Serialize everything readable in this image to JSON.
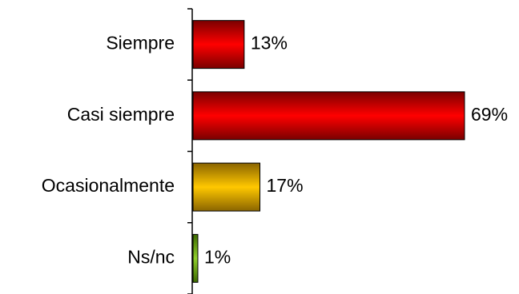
{
  "chart_data": {
    "type": "bar",
    "orientation": "horizontal",
    "categories": [
      "Siempre",
      "Casi siempre",
      "Ocasionalmente",
      "Ns/nc"
    ],
    "values": [
      13,
      69,
      17,
      1
    ],
    "data_labels": [
      "13%",
      "69%",
      "17%",
      "1%"
    ],
    "value_unit": "%",
    "xlim": [
      0,
      69
    ],
    "grid": false,
    "legend": "none",
    "colors": [
      "#ff0000",
      "#ff0000",
      "#ffc800",
      "#7fbf1a"
    ]
  }
}
